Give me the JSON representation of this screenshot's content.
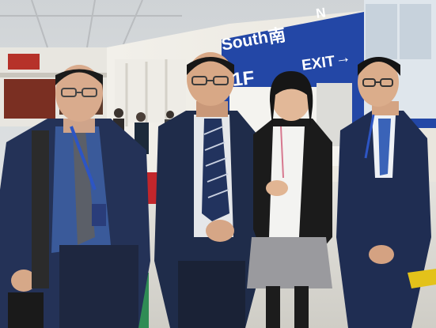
{
  "signage": {
    "hall_direction": "South",
    "hall_direction_cn": "南",
    "floor_level": "1F",
    "exit_label": "EXIT",
    "north_marker": "N"
  },
  "colors": {
    "sign_blue": "#2347a6",
    "navy_suit": "#1f2c4a",
    "floor": "#d9d8d2",
    "ceiling": "#dfe2e4"
  }
}
